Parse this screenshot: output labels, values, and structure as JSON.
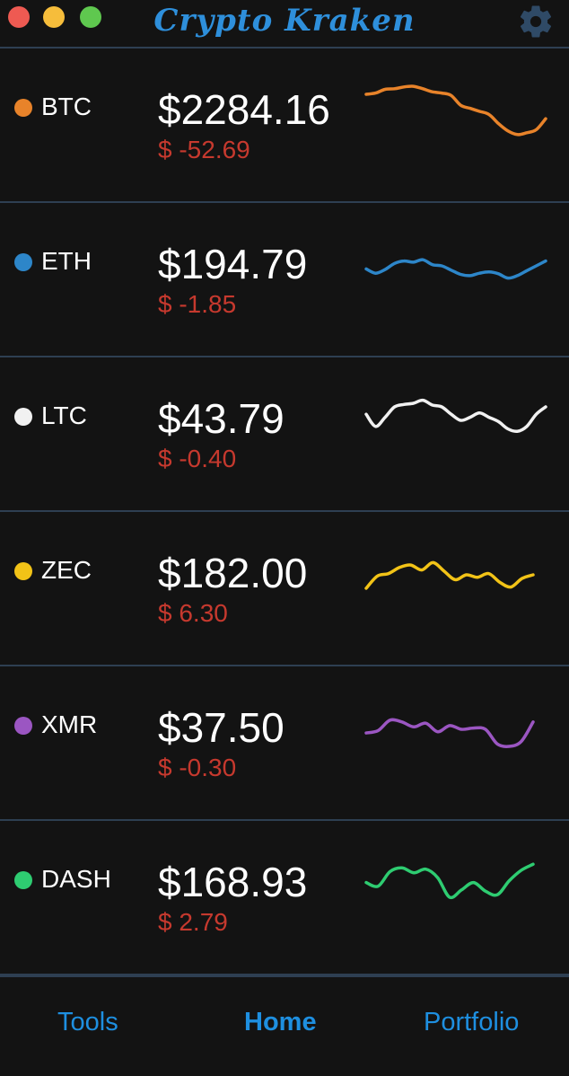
{
  "app": {
    "title": "Crypto Kraken"
  },
  "window_controls": {
    "close": "close",
    "minimize": "minimize",
    "zoom": "zoom"
  },
  "header": {
    "settings_icon": "gear-icon"
  },
  "coins": [
    {
      "symbol": "BTC",
      "price": "$2284.16",
      "change": "$ -52.69",
      "color": "#e8832a",
      "sparkline": [
        0.78,
        0.8,
        0.86,
        0.87,
        0.9,
        0.91,
        0.87,
        0.82,
        0.8,
        0.76,
        0.6,
        0.55,
        0.5,
        0.45,
        0.3,
        0.18,
        0.12,
        0.15,
        0.2,
        0.38
      ]
    },
    {
      "symbol": "ETH",
      "price": "$194.79",
      "change": "$ -1.85",
      "color": "#2d86c9",
      "sparkline": [
        0.45,
        0.38,
        0.44,
        0.54,
        0.58,
        0.56,
        0.6,
        0.52,
        0.5,
        0.43,
        0.36,
        0.34,
        0.38,
        0.4,
        0.37,
        0.3,
        0.34,
        0.42,
        0.5,
        0.58
      ]
    },
    {
      "symbol": "LTC",
      "price": "$43.79",
      "change": "$ -0.40",
      "color": "#f1f1f1",
      "sparkline": [
        0.6,
        0.4,
        0.55,
        0.72,
        0.76,
        0.78,
        0.83,
        0.75,
        0.72,
        0.6,
        0.5,
        0.55,
        0.62,
        0.55,
        0.48,
        0.36,
        0.32,
        0.4,
        0.6,
        0.72
      ]
    },
    {
      "symbol": "ZEC",
      "price": "$182.00",
      "change": "$ 6.30",
      "color": "#f2c317",
      "sparkline": [
        0.28,
        0.48,
        0.52,
        0.62,
        0.66,
        0.58,
        0.7,
        0.56,
        0.42,
        0.5,
        0.46,
        0.52,
        0.38,
        0.3,
        0.44,
        0.5
      ]
    },
    {
      "symbol": "XMR",
      "price": "$37.50",
      "change": "$ -0.30",
      "color": "#9b56c2",
      "sparkline": [
        0.44,
        0.48,
        0.65,
        0.62,
        0.54,
        0.6,
        0.46,
        0.56,
        0.5,
        0.52,
        0.5,
        0.26,
        0.22,
        0.3,
        0.62
      ]
    },
    {
      "symbol": "DASH",
      "price": "$168.93",
      "change": "$ 2.79",
      "color": "#2ecc71",
      "sparkline": [
        0.52,
        0.46,
        0.7,
        0.76,
        0.68,
        0.74,
        0.6,
        0.28,
        0.4,
        0.52,
        0.38,
        0.32,
        0.55,
        0.72,
        0.82
      ]
    }
  ],
  "nav": {
    "tools": "Tools",
    "home": "Home",
    "portfolio": "Portfolio"
  }
}
